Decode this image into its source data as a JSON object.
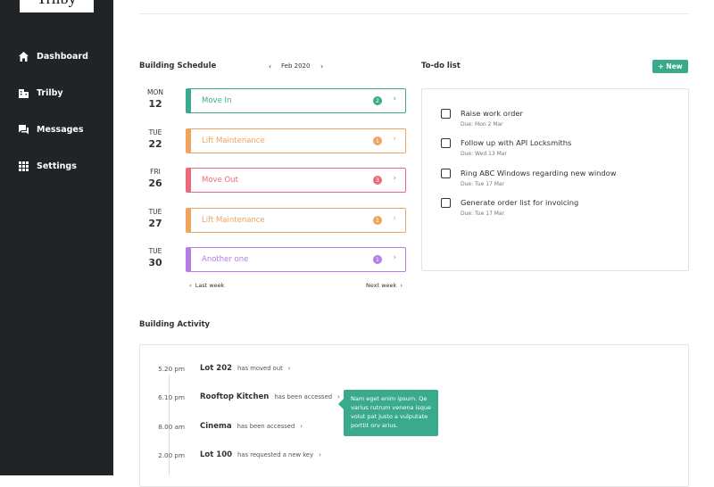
{
  "logo": "Trilby",
  "sidebar": {
    "items": [
      "Dashboard",
      "Trilby",
      "Messages",
      "Settings"
    ]
  },
  "schedule": {
    "title": "Building Schedule",
    "month": "Feb 2020",
    "events": [
      {
        "day": "MON",
        "date": 12,
        "label": "Move In",
        "count": 2
      },
      {
        "day": "TUE",
        "date": 22,
        "label": "Lift Maintenance",
        "count": 1
      },
      {
        "day": "FRI",
        "date": 26,
        "label": "Move Out",
        "count": 3
      },
      {
        "day": "TUE",
        "date": 27,
        "label": "Lift Maintenance",
        "count": 1
      },
      {
        "day": "TUE",
        "date": 30,
        "label": "Another one",
        "count": 1
      }
    ],
    "prev": "Last week",
    "next": "Next week"
  },
  "todo": {
    "title": "To-do list",
    "button": "New",
    "items": [
      {
        "task": "Raise work order",
        "due": "Due: Mon 2 Mar"
      },
      {
        "task": "Follow up with API Locksmiths",
        "due": "Due: Wed 13 Mar"
      },
      {
        "task": "Ring ABC Windows regarding new window",
        "due": "Due: Tue 17 Mar"
      },
      {
        "task": "Generate order list for invoicing",
        "due": "Due: Tue 17 Mar"
      }
    ]
  },
  "activity": {
    "title": "Building Activity",
    "entries": [
      {
        "time": "5.20 pm",
        "place": "Lot 202",
        "action": "has moved out"
      },
      {
        "time": "6.10 pm",
        "place": "Rooftop Kitchen",
        "action": "has been accessed"
      },
      {
        "time": "8.00 am",
        "place": "Cinema",
        "action": "has been accessed"
      },
      {
        "time": "2.00 pm",
        "place": "Lot 100",
        "action": "has requested a new key"
      }
    ],
    "tooltip": "Nam eget enim ipsum. Qe varius rutrum venena isque volut pat justo a vulputate porttit orv arius."
  }
}
